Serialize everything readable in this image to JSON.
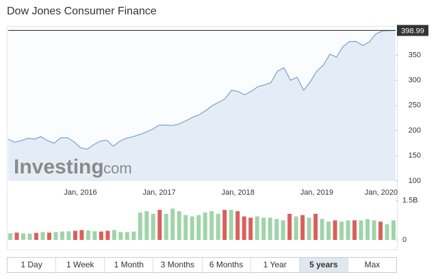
{
  "header": {
    "title": "Dow Jones Consumer Finance"
  },
  "watermark": {
    "brand": "Investing",
    "suffix": ".com"
  },
  "chart_data": [
    {
      "type": "area",
      "color": "#7fa6cf",
      "fill": "#e4edf6",
      "categories": [
        null,
        null,
        null,
        null,
        null,
        null,
        null,
        null,
        null,
        null,
        null,
        "Jan, 2016",
        null,
        null,
        null,
        null,
        null,
        null,
        null,
        null,
        null,
        null,
        null,
        "Jan, 2017",
        null,
        null,
        null,
        null,
        null,
        null,
        null,
        null,
        null,
        null,
        null,
        "Jan, 2018",
        null,
        null,
        null,
        null,
        null,
        null,
        null,
        null,
        null,
        null,
        null,
        "Jan, 2019",
        null,
        null,
        null,
        null,
        null,
        null,
        null,
        null,
        null,
        null,
        null,
        "Jan, 2020"
      ],
      "values": [
        183,
        177,
        180,
        185,
        183,
        188,
        180,
        175,
        186,
        186,
        178,
        166,
        163,
        172,
        179,
        181,
        169,
        179,
        185,
        188,
        192,
        197,
        203,
        211,
        211,
        210,
        213,
        219,
        226,
        231,
        239,
        249,
        256,
        263,
        280,
        278,
        271,
        278,
        287,
        291,
        295,
        318,
        325,
        300,
        306,
        280,
        297,
        318,
        330,
        352,
        346,
        367,
        377,
        377,
        369,
        376,
        392,
        398,
        398.5,
        398.99
      ],
      "ylim": [
        100,
        405
      ],
      "yticks": [
        100,
        150,
        200,
        250,
        300,
        350
      ],
      "grid": false
    },
    {
      "type": "bar",
      "values": [
        0.25,
        0.28,
        0.25,
        0.24,
        0.27,
        0.3,
        0.28,
        0.3,
        0.32,
        0.33,
        0.35,
        0.38,
        0.36,
        0.33,
        0.32,
        0.35,
        0.38,
        0.3,
        0.3,
        0.32,
        1.05,
        1.1,
        1.0,
        1.15,
        1.0,
        1.2,
        1.1,
        0.95,
        0.9,
        0.95,
        1.05,
        1.1,
        1.0,
        1.15,
        1.15,
        1.1,
        0.9,
        0.85,
        0.9,
        0.85,
        0.85,
        0.8,
        0.75,
        1.0,
        0.9,
        0.95,
        0.85,
        1.0,
        0.8,
        0.7,
        0.75,
        0.7,
        0.75,
        0.75,
        0.75,
        0.8,
        0.75,
        0.7,
        0.6,
        0.75
      ],
      "colors": [
        "#9fd4a9",
        "#d9605b",
        "#9fd4a9",
        "#9fd4a9",
        "#d9605b",
        "#9fd4a9",
        "#d9605b",
        "#9fd4a9",
        "#9fd4a9",
        "#9fd4a9",
        "#d9605b",
        "#d9605b",
        "#9fd4a9",
        "#9fd4a9",
        "#d9605b",
        "#d9605b",
        "#9fd4a9",
        "#9fd4a9",
        "#9fd4a9",
        "#9fd4a9",
        "#9fd4a9",
        "#9fd4a9",
        "#9fd4a9",
        "#d9605b",
        "#9fd4a9",
        "#9fd4a9",
        "#9fd4a9",
        "#9fd4a9",
        "#9fd4a9",
        "#9fd4a9",
        "#9fd4a9",
        "#9fd4a9",
        "#9fd4a9",
        "#d9605b",
        "#9fd4a9",
        "#d9605b",
        "#d9605b",
        "#d9605b",
        "#9fd4a9",
        "#9fd4a9",
        "#9fd4a9",
        "#9fd4a9",
        "#9fd4a9",
        "#d9605b",
        "#9fd4a9",
        "#d9605b",
        "#9fd4a9",
        "#d9605b",
        "#9fd4a9",
        "#9fd4a9",
        "#d9605b",
        "#9fd4a9",
        "#9fd4a9",
        "#d9605b",
        "#9fd4a9",
        "#9fd4a9",
        "#9fd4a9",
        "#d9605b",
        "#9fd4a9",
        "#9fd4a9"
      ],
      "ylim": [
        0,
        1.6
      ],
      "yticks": [
        0,
        {
          "value": 1.5,
          "label": "1.5B"
        }
      ]
    }
  ],
  "tabs": [
    "1 Day",
    "1 Week",
    "1 Month",
    "3 Months",
    "6 Months",
    "1 Year",
    "5 years",
    "Max"
  ],
  "selected_tab": 6
}
